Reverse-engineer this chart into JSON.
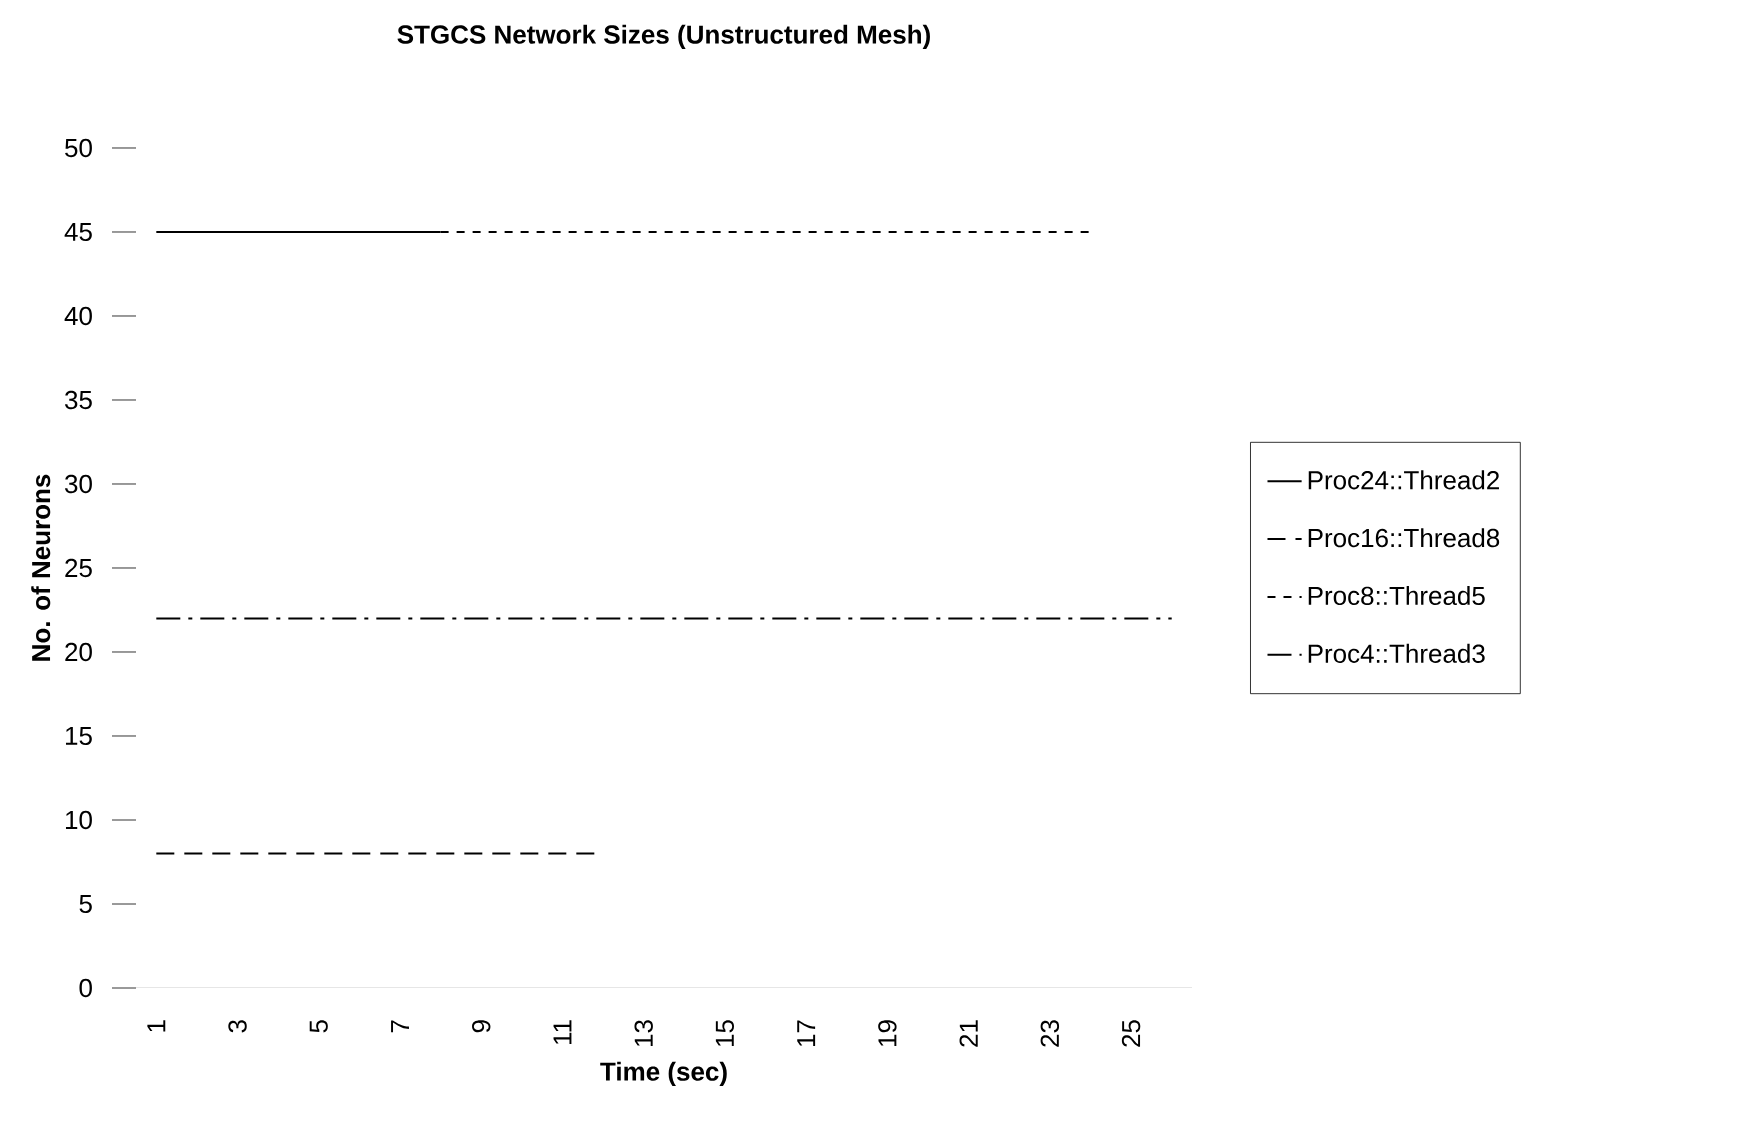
{
  "chart_data": {
    "type": "line",
    "title": "STGCS Network Sizes (Unstructured Mesh)",
    "xlabel": "Time (sec)",
    "ylabel": "No. of Neurons",
    "xlim": [
      0.5,
      26.5
    ],
    "xticks": [
      1,
      3,
      5,
      7,
      9,
      11,
      13,
      15,
      17,
      19,
      21,
      23,
      25
    ],
    "ylim": [
      0,
      50
    ],
    "yticks": [
      0,
      5,
      10,
      15,
      20,
      25,
      30,
      35,
      40,
      45,
      50
    ],
    "legend": "right",
    "grid": false,
    "marker": "none",
    "series": [
      {
        "name": "Proc24::Thread2",
        "color": "#000000",
        "line_style": "solid",
        "x": [
          1,
          2,
          3,
          4,
          5,
          6,
          7,
          8
        ],
        "values": [
          45,
          45,
          45,
          45,
          45,
          45,
          45,
          45
        ]
      },
      {
        "name": "Proc16::Thread8",
        "color": "#000000",
        "line_style": "dashed",
        "x": [
          1,
          2,
          3,
          4,
          5,
          6,
          7,
          8,
          9,
          10,
          11,
          12
        ],
        "values": [
          8,
          8,
          8,
          8,
          8,
          8,
          8,
          8,
          8,
          8,
          8,
          8
        ]
      },
      {
        "name": "Proc8::Thread5",
        "color": "#000000",
        "line_style": "dotted",
        "x": [
          8,
          9,
          10,
          11,
          12,
          13,
          14,
          15,
          16,
          17,
          18,
          19,
          20,
          21,
          22,
          23,
          24
        ],
        "values": [
          45,
          45,
          45,
          45,
          45,
          45,
          45,
          45,
          45,
          45,
          45,
          45,
          45,
          45,
          45,
          45,
          45
        ]
      },
      {
        "name": "Proc4::Thread3",
        "color": "#000000",
        "line_style": "dashdot",
        "x": [
          1,
          2,
          3,
          4,
          5,
          6,
          7,
          8,
          9,
          10,
          11,
          12,
          13,
          14,
          15,
          16,
          17,
          18,
          19,
          20,
          21,
          22,
          23,
          24,
          25,
          26
        ],
        "values": [
          22,
          22,
          22,
          22,
          22,
          22,
          22,
          22,
          22,
          22,
          22,
          22,
          22,
          22,
          22,
          22,
          22,
          22,
          22,
          22,
          22,
          22,
          22,
          22,
          22,
          22
        ]
      }
    ]
  }
}
